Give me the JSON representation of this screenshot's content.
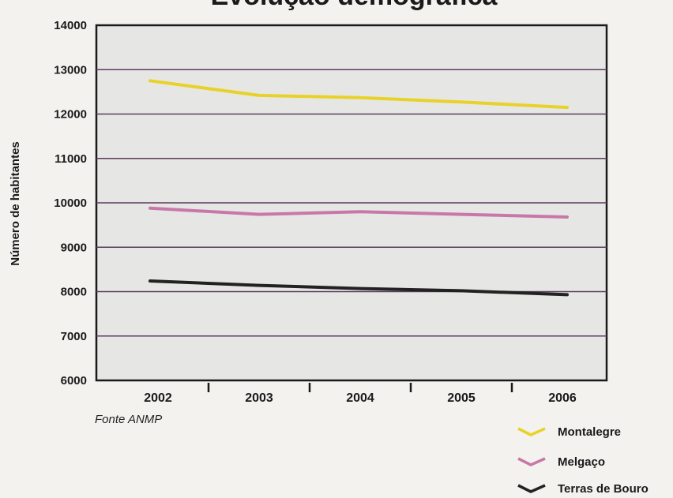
{
  "chart_data": {
    "type": "line",
    "title": "Evolução demográfica",
    "xlabel": "",
    "ylabel": "Número de habitantes",
    "x": [
      "2002",
      "2003",
      "2004",
      "2005",
      "2006"
    ],
    "ylim": [
      6000,
      14000
    ],
    "yticks": [
      "6000",
      "7000",
      "8000",
      "9000",
      "10000",
      "11000",
      "12000",
      "13000",
      "14000"
    ],
    "grid": true,
    "legend_position": "bottom-right",
    "source": "Fonte ANMP",
    "series": [
      {
        "name": "Montalegre",
        "color": "#e8d22a",
        "values": [
          12750,
          12420,
          12370,
          12270,
          12150
        ]
      },
      {
        "name": "Melgaço",
        "color": "#c878a8",
        "values": [
          9880,
          9740,
          9800,
          9740,
          9680
        ]
      },
      {
        "name": "Terras de Bouro",
        "color": "#222222",
        "values": [
          8240,
          8140,
          8070,
          8020,
          7930
        ]
      }
    ]
  }
}
